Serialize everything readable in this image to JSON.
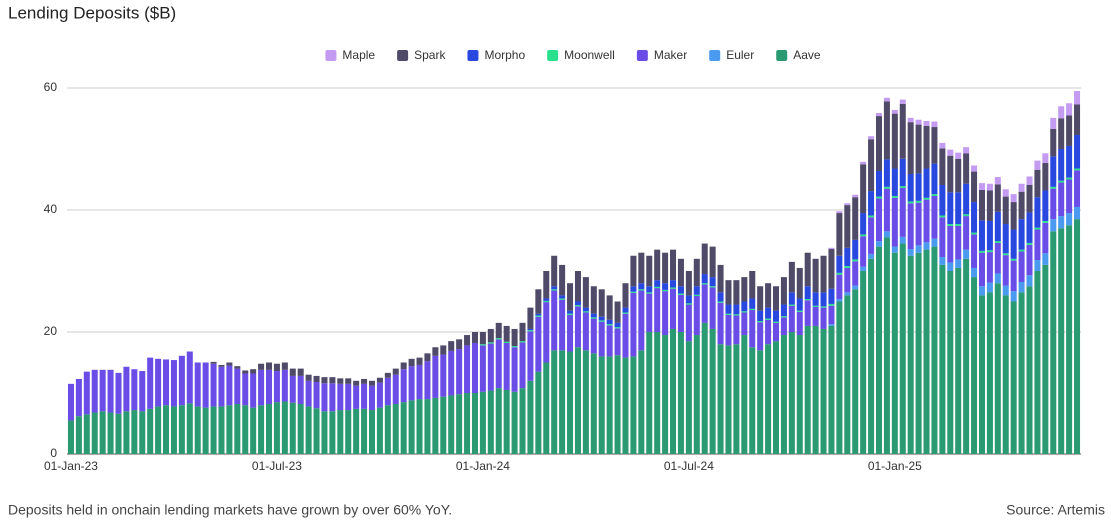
{
  "chart_data": {
    "type": "stacked_bar",
    "title": "Lending Deposits ($B)",
    "footnote": "Deposits held in onchain lending markets have grown by over 60% YoY.",
    "source": "Source: Artemis",
    "categories": [
      "01-Jan-23",
      null,
      null,
      null,
      null,
      null,
      null,
      null,
      null,
      null,
      null,
      null,
      null,
      null,
      null,
      null,
      null,
      null,
      null,
      null,
      null,
      null,
      null,
      null,
      null,
      null,
      "01-Jul-23",
      null,
      null,
      null,
      null,
      null,
      null,
      null,
      null,
      null,
      null,
      null,
      null,
      null,
      null,
      null,
      null,
      null,
      null,
      null,
      null,
      null,
      null,
      null,
      null,
      null,
      "01-Jan-24",
      null,
      null,
      null,
      null,
      null,
      null,
      null,
      null,
      null,
      null,
      null,
      null,
      null,
      null,
      null,
      null,
      null,
      null,
      null,
      null,
      null,
      null,
      null,
      null,
      null,
      "01-Jul-24",
      null,
      null,
      null,
      null,
      null,
      null,
      null,
      null,
      null,
      null,
      null,
      null,
      null,
      null,
      null,
      null,
      null,
      null,
      null,
      null,
      null,
      null,
      null,
      null,
      null,
      "01-Jan-25",
      null,
      null,
      null,
      null,
      null,
      null,
      null,
      null,
      null,
      null,
      null,
      null,
      null,
      null,
      null,
      null,
      null,
      null,
      null,
      null,
      null,
      null,
      null
    ],
    "series": [
      {
        "name": "Maple",
        "color": "#c39bf0",
        "values": [
          0,
          0,
          0,
          0,
          0,
          0,
          0,
          0,
          0,
          0,
          0,
          0,
          0,
          0,
          0,
          0,
          0,
          0,
          0,
          0,
          0,
          0,
          0,
          0,
          0,
          0,
          0,
          0,
          0,
          0,
          0,
          0,
          0,
          0,
          0,
          0,
          0,
          0,
          0,
          0,
          0,
          0,
          0,
          0,
          0,
          0,
          0,
          0,
          0,
          0,
          0,
          0,
          0,
          0,
          0,
          0,
          0,
          0,
          0,
          0,
          0,
          0,
          0,
          0,
          0,
          0,
          0,
          0,
          0,
          0,
          0,
          0,
          0,
          0,
          0,
          0,
          0,
          0,
          0,
          0,
          0,
          0,
          0,
          0,
          0,
          0,
          0,
          0,
          0,
          0,
          0,
          0,
          0,
          0,
          0,
          0,
          0.2,
          0.3,
          0.3,
          0.4,
          0.4,
          0.5,
          0.5,
          0.6,
          0.6,
          0.7,
          0.7,
          0.8,
          0.8,
          0.9,
          0.9,
          1,
          1,
          1,
          1,
          1.1,
          1.1,
          1.2,
          1.2,
          1.3,
          1.3,
          1.4,
          1.5,
          1.6,
          1.8,
          2,
          2,
          2.2
        ]
      },
      {
        "name": "Spark",
        "color": "#4f4a68",
        "values": [
          0,
          0,
          0,
          0,
          0,
          0,
          0,
          0,
          0,
          0,
          0,
          0,
          0,
          0,
          0,
          0,
          0,
          0,
          0.3,
          0.3,
          0.5,
          0.4,
          0.5,
          0.7,
          1,
          1.2,
          1.2,
          1.2,
          1.2,
          1.2,
          1,
          1,
          1,
          1,
          0.9,
          0.9,
          0.8,
          0.8,
          0.8,
          0.8,
          0.8,
          1,
          1.1,
          1.2,
          1.2,
          1.3,
          1.4,
          1.5,
          1.6,
          1.6,
          1.7,
          1.8,
          2,
          2.2,
          2.5,
          2.6,
          2.8,
          3,
          3.5,
          4,
          4.5,
          5,
          5,
          4.5,
          5,
          5,
          4.5,
          4.5,
          4,
          3.5,
          4,
          5,
          5,
          5,
          5,
          5,
          5,
          4.5,
          4,
          4.5,
          5,
          5,
          4.5,
          4,
          4,
          4,
          4.5,
          4,
          4,
          4,
          4.5,
          5,
          5,
          5.5,
          5.5,
          6,
          6.5,
          7,
          7,
          7,
          8,
          8.5,
          9,
          9.5,
          9,
          9,
          8.5,
          8,
          7,
          6,
          6,
          6,
          5.5,
          5,
          5,
          5,
          5,
          4.5,
          4.5,
          4.5,
          4.5,
          4.5,
          4.5,
          4.5,
          4.5,
          5,
          5,
          5
        ]
      },
      {
        "name": "Morpho",
        "color": "#2848e0",
        "values": [
          0,
          0,
          0,
          0,
          0,
          0,
          0,
          0,
          0,
          0,
          0,
          0,
          0,
          0,
          0,
          0,
          0,
          0,
          0,
          0,
          0,
          0,
          0,
          0,
          0,
          0,
          0,
          0,
          0,
          0,
          0,
          0,
          0,
          0,
          0,
          0,
          0,
          0,
          0,
          0,
          0,
          0,
          0,
          0,
          0,
          0,
          0,
          0,
          0,
          0,
          0,
          0,
          0,
          0,
          0,
          0,
          0,
          0,
          0.2,
          0.3,
          0.4,
          0.5,
          0.5,
          0.5,
          0.6,
          0.6,
          0.6,
          0.6,
          0.7,
          0.7,
          0.8,
          0.9,
          1,
          1,
          1.1,
          1.1,
          1.2,
          1.2,
          1.3,
          1.4,
          1.5,
          1.5,
          1.5,
          1.5,
          1.6,
          1.6,
          1.7,
          1.7,
          1.8,
          1.8,
          1.9,
          2,
          2,
          2.1,
          2.2,
          2.3,
          2.5,
          2.8,
          3,
          3.2,
          3.5,
          4,
          4.2,
          4.5,
          4.5,
          4.5,
          4.5,
          4.5,
          4.8,
          5,
          5,
          5.2,
          5.2,
          5,
          5,
          5,
          4.8,
          4.8,
          4.8,
          4.8,
          5,
          5,
          5,
          5,
          5,
          5.2,
          5.2,
          5.5
        ]
      },
      {
        "name": "Moonwell",
        "color": "#29e08f",
        "values": [
          0,
          0,
          0,
          0,
          0,
          0,
          0,
          0,
          0,
          0,
          0,
          0,
          0,
          0,
          0,
          0,
          0,
          0,
          0,
          0,
          0,
          0,
          0,
          0,
          0,
          0,
          0,
          0,
          0,
          0,
          0,
          0,
          0,
          0,
          0,
          0,
          0,
          0,
          0,
          0,
          0,
          0,
          0,
          0,
          0,
          0,
          0,
          0,
          0,
          0,
          0,
          0,
          0.2,
          0.2,
          0.2,
          0.2,
          0.2,
          0.2,
          0.2,
          0.2,
          0.2,
          0.2,
          0.2,
          0.2,
          0.2,
          0.2,
          0.2,
          0.2,
          0.2,
          0.2,
          0.2,
          0.2,
          0.2,
          0.2,
          0.2,
          0.2,
          0.2,
          0.2,
          0.2,
          0.2,
          0.2,
          0.2,
          0.2,
          0.2,
          0.2,
          0.2,
          0.2,
          0.2,
          0.2,
          0.2,
          0.2,
          0.2,
          0.2,
          0.2,
          0.2,
          0.2,
          0.3,
          0.3,
          0.3,
          0.3,
          0.3,
          0.3,
          0.3,
          0.3,
          0.3,
          0.3,
          0.3,
          0.3,
          0.3,
          0.3,
          0.3,
          0.3,
          0.3,
          0.3,
          0.3,
          0.3,
          0.3,
          0.3,
          0.3,
          0.3,
          0.3,
          0.3,
          0.3,
          0.3,
          0.3,
          0.3,
          0.3,
          0.3
        ]
      },
      {
        "name": "Maker",
        "color": "#6a4de6",
        "values": [
          6,
          6.1,
          7,
          7,
          6.8,
          7,
          6.7,
          7.3,
          6.7,
          6.6,
          8.4,
          7.8,
          7.5,
          7.6,
          8.1,
          8.5,
          7.2,
          7.4,
          7,
          6.5,
          6.5,
          5.8,
          5.2,
          5.6,
          5.8,
          5.6,
          5.1,
          5.2,
          4.4,
          4.6,
          4.2,
          4.3,
          4.6,
          4.6,
          4.3,
          4.3,
          3.8,
          4.1,
          4,
          4.1,
          4.5,
          4.8,
          5.4,
          5.6,
          5.6,
          6.2,
          6.9,
          6.9,
          7.3,
          7.4,
          7.8,
          8.2,
          7.6,
          7.7,
          8,
          7.7,
          7.3,
          7.5,
          8.1,
          9,
          9.9,
          9.8,
          8.3,
          6,
          6.7,
          6.2,
          5.7,
          5.7,
          5.1,
          4.4,
          7.2,
          10.4,
          9.8,
          6.3,
          7.2,
          7.2,
          6.6,
          6.1,
          6,
          6.4,
          6.3,
          6.8,
          6.8,
          5,
          4.7,
          3.7,
          6.1,
          4.6,
          4,
          3,
          2.9,
          4.3,
          3.8,
          4.2,
          3.1,
          3.5,
          3,
          4,
          4,
          4,
          5,
          6,
          7,
          7,
          8,
          8,
          7.5,
          7,
          7,
          7,
          6.5,
          6,
          5.5,
          5.5,
          5.5,
          5.5,
          5,
          5,
          5,
          5,
          5,
          5,
          5,
          5,
          5,
          5.5,
          5.5,
          6
        ]
      },
      {
        "name": "Euler",
        "color": "#4a9af0",
        "values": [
          0,
          0,
          0,
          0,
          0,
          0,
          0,
          0,
          0,
          0,
          0,
          0,
          0,
          0,
          0,
          0,
          0,
          0,
          0,
          0,
          0,
          0,
          0,
          0,
          0,
          0,
          0,
          0,
          0,
          0,
          0,
          0,
          0,
          0,
          0,
          0,
          0,
          0,
          0,
          0,
          0,
          0,
          0,
          0,
          0,
          0,
          0,
          0,
          0,
          0,
          0,
          0,
          0,
          0,
          0,
          0,
          0,
          0,
          0,
          0,
          0,
          0,
          0,
          0,
          0,
          0,
          0,
          0,
          0,
          0,
          0,
          0,
          0,
          0,
          0,
          0,
          0,
          0,
          0,
          0,
          0,
          0,
          0,
          0,
          0,
          0,
          0,
          0,
          0,
          0,
          0,
          0,
          0,
          0,
          0,
          0,
          0.3,
          0.4,
          0.5,
          0.6,
          0.7,
          0.8,
          0.9,
          1,
          1,
          1.1,
          1.1,
          1.2,
          1.2,
          1.3,
          1.3,
          1.4,
          1.4,
          1.5,
          1.5,
          1.5,
          1.6,
          1.6,
          1.6,
          1.7,
          1.7,
          1.8,
          1.8,
          1.9,
          2,
          2,
          2,
          2
        ]
      },
      {
        "name": "Aave",
        "color": "#2a9a72",
        "values": [
          5.5,
          6.2,
          6.5,
          6.8,
          7,
          6.8,
          6.6,
          7,
          7.2,
          7,
          7.4,
          7.8,
          8,
          7.8,
          8,
          8.3,
          7.8,
          7.6,
          7.8,
          7.8,
          8,
          8.2,
          8,
          7.6,
          8,
          8.2,
          8.5,
          8.6,
          8.4,
          8.2,
          7.8,
          7.5,
          7,
          7,
          7.2,
          7.2,
          7.4,
          7.4,
          7.2,
          7.6,
          8,
          8.2,
          8.5,
          8.8,
          9,
          9,
          9.2,
          9.4,
          9.6,
          9.8,
          10,
          10,
          10.2,
          10.4,
          10.8,
          10.5,
          10.2,
          10.8,
          12,
          13.5,
          15,
          17,
          17,
          16.8,
          17.5,
          17,
          16.5,
          16,
          16,
          16.2,
          15.8,
          16,
          17,
          20,
          20,
          19.5,
          20.5,
          20,
          18.5,
          19.5,
          21.5,
          20.5,
          18,
          17.8,
          18,
          19.5,
          17.5,
          17,
          18,
          18.5,
          19.5,
          20,
          19.5,
          21,
          21,
          20.5,
          21,
          25,
          26,
          27,
          30,
          32,
          34,
          35.5,
          33,
          34.5,
          32.5,
          33,
          33.5,
          34,
          31,
          30,
          30.5,
          32,
          29,
          26,
          26.5,
          28,
          26,
          25,
          26.5,
          27.5,
          30,
          31,
          36.5,
          37,
          37.5,
          38.5
        ]
      }
    ],
    "ylim": [
      0,
      60
    ],
    "yticks": [
      0,
      20,
      40,
      60
    ],
    "grid": true,
    "legend": "top"
  }
}
